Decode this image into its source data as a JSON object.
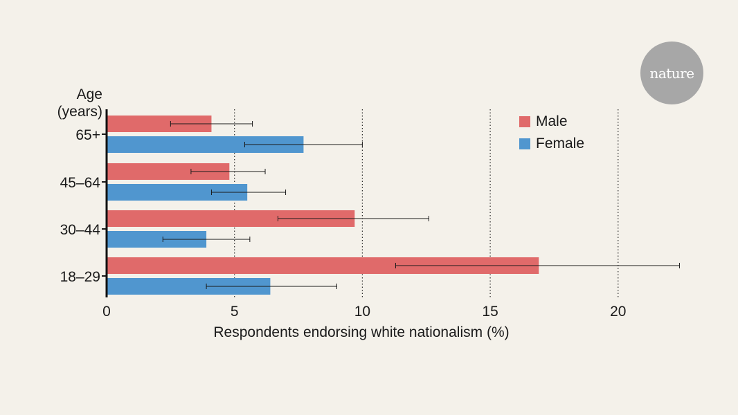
{
  "chart_data": {
    "type": "bar",
    "orientation": "horizontal",
    "title": "",
    "xlabel": "Respondents endorsing white nationalism (%)",
    "ylabel": "Age (years)",
    "ylabel_lines": [
      "Age",
      "(years)"
    ],
    "xlim": [
      0,
      22.5
    ],
    "xticks": [
      0,
      5,
      10,
      15,
      20
    ],
    "grid": "dotted vertical at 5, 10, 15, 20",
    "legend": "top-right",
    "categories": [
      "65+",
      "45–64",
      "30–44",
      "18–29"
    ],
    "series": [
      {
        "name": "Male",
        "color": "#e06a6a",
        "values": [
          4.1,
          4.8,
          9.7,
          16.9
        ],
        "error_low": [
          2.5,
          3.3,
          6.7,
          11.3
        ],
        "error_high": [
          5.7,
          6.2,
          12.6,
          22.4
        ]
      },
      {
        "name": "Female",
        "color": "#5096cf",
        "values": [
          7.7,
          5.5,
          3.9,
          6.4
        ],
        "error_low": [
          5.4,
          4.1,
          2.2,
          3.9
        ],
        "error_high": [
          10.0,
          7.0,
          5.6,
          9.0
        ]
      }
    ]
  },
  "branding": {
    "logo_text": "nature"
  }
}
